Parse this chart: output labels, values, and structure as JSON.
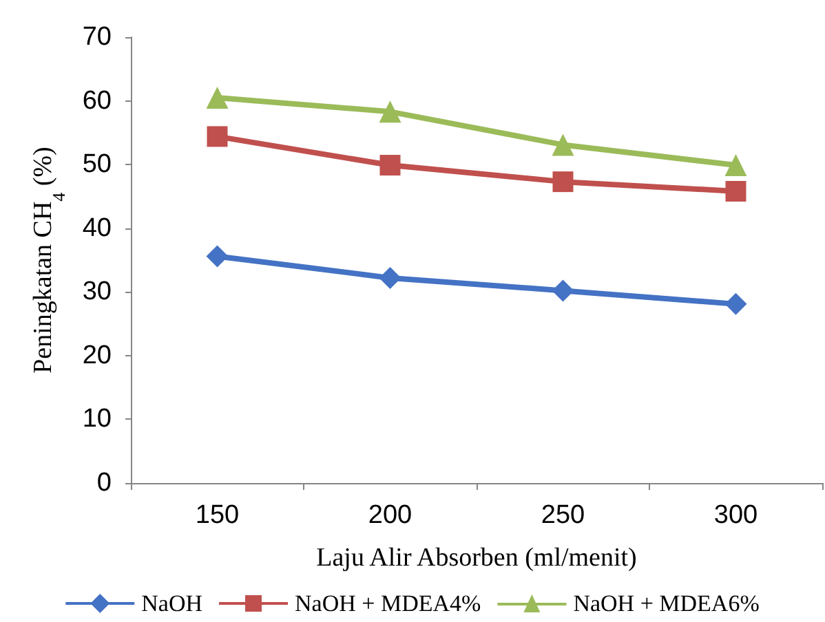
{
  "chart_data": {
    "type": "line",
    "xlabel": "Laju Alir Absorben (ml/menit)",
    "ylabel": "Peningkatan CH$_{4}$ (%)",
    "categories": [
      "150",
      "200",
      "250",
      "300"
    ],
    "series": [
      {
        "name": "NaOH",
        "color": "#4472c4",
        "marker": "diamond",
        "values": [
          35.6,
          32.2,
          30.2,
          28.1
        ]
      },
      {
        "name": "NaOH + MDEA4%",
        "color": "#c0504d",
        "marker": "square",
        "values": [
          54.4,
          49.9,
          47.3,
          45.8
        ]
      },
      {
        "name": "NaOH + MDEA6%",
        "color": "#9bbb59",
        "marker": "triangle",
        "values": [
          60.5,
          58.3,
          53.1,
          49.9
        ]
      }
    ],
    "ylim": [
      0,
      70
    ],
    "yticks": [
      0,
      10,
      20,
      30,
      40,
      50,
      60,
      70
    ],
    "grid": false,
    "legend": "bottom"
  }
}
